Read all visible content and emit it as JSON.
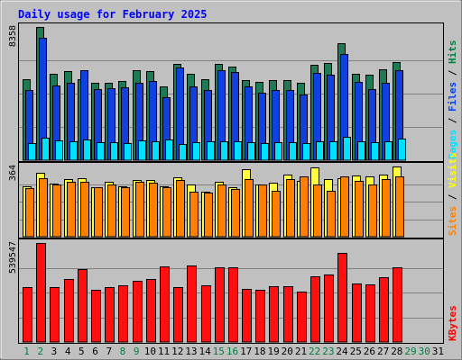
{
  "chart_data": {
    "type": "bar",
    "title": "Daily usage for February 2025",
    "categories": [
      "1",
      "2",
      "3",
      "4",
      "5",
      "6",
      "7",
      "8",
      "9",
      "10",
      "11",
      "12",
      "13",
      "14",
      "15",
      "16",
      "17",
      "18",
      "19",
      "20",
      "21",
      "22",
      "23",
      "24",
      "25",
      "26",
      "27",
      "28",
      "29",
      "30",
      "31"
    ],
    "weekend_days": [
      "1",
      "2",
      "8",
      "9",
      "15",
      "16",
      "22",
      "23",
      "29",
      "30"
    ],
    "panels": [
      {
        "name": "hits-files-pages",
        "ymax_label": "8358",
        "ylim": [
          0,
          8358
        ],
        "legend": [
          {
            "text": "Pages",
            "color": "#00e0ff"
          },
          {
            "text": " / ",
            "color": "#000000"
          },
          {
            "text": "Files",
            "color": "#0040ff"
          },
          {
            "text": " / ",
            "color": "#000000"
          },
          {
            "text": "Hits",
            "color": "#008040"
          }
        ],
        "series": [
          {
            "name": "Hits",
            "color": "#1e7a55",
            "values": [
              5060,
              8360,
              5440,
              5610,
              5100,
              4840,
              4870,
              4980,
              5650,
              5600,
              4630,
              6070,
              5420,
              5090,
              6060,
              5860,
              5040,
              4930,
              5040,
              5030,
              4870,
              6000,
              6100,
              7340,
              5420,
              5360,
              5680,
              6150,
              0,
              0,
              0
            ]
          },
          {
            "name": "Files",
            "color": "#1040e0",
            "values": [
              4380,
              7700,
              4660,
              4830,
              5660,
              4450,
              4540,
              4550,
              4830,
              4950,
              3960,
              5830,
              4610,
              4380,
              5640,
              5520,
              4640,
              4220,
              4390,
              4380,
              4120,
              5490,
              5380,
              6690,
              4940,
              4460,
              4860,
              5640,
              0,
              0,
              0
            ]
          },
          {
            "name": "Pages",
            "color": "#00e0ff",
            "values": [
              1100,
              1400,
              1250,
              1210,
              1290,
              1140,
              1110,
              1090,
              1230,
              1210,
              1310,
              995,
              1120,
              1180,
              1210,
              1200,
              1140,
              1050,
              1130,
              1120,
              1100,
              1210,
              1210,
              1450,
              1180,
              1140,
              1200,
              1350,
              0,
              0,
              0
            ]
          }
        ]
      },
      {
        "name": "visits-sites",
        "ymax_label": "364",
        "ylim": [
          0,
          364
        ],
        "legend": [
          {
            "text": "Sites",
            "color": "#ff8000"
          },
          {
            "text": " / ",
            "color": "#000000"
          },
          {
            "text": "Visits",
            "color": "#ffff00"
          }
        ],
        "series": [
          {
            "name": "Visits",
            "color": "#ffff40",
            "values": [
              260,
              330,
              277,
              300,
              303,
              258,
              287,
              263,
              293,
              292,
              263,
              310,
              269,
              235,
              285,
              255,
              350,
              270,
              280,
              320,
              290,
              361,
              300,
              303,
              317,
              314,
              322,
              362,
              0,
              0,
              0
            ]
          },
          {
            "name": "Sites",
            "color": "#ff8000",
            "values": [
              250,
              305,
              270,
              283,
              285,
              255,
              270,
              255,
              283,
              280,
              255,
              296,
              233,
              228,
              270,
              248,
              300,
              270,
              236,
              297,
              314,
              270,
              238,
              314,
              290,
              270,
              300,
              314,
              0,
              0,
              0
            ]
          }
        ]
      },
      {
        "name": "kbytes",
        "ymax_label": "539547",
        "ylim": [
          0,
          539547
        ],
        "legend": [
          {
            "text": "KBytes",
            "color": "#ff0000"
          }
        ],
        "series": [
          {
            "name": "KBytes",
            "color": "#ff1010",
            "values": [
              300000,
              540000,
              300000,
              343000,
              395000,
              283000,
              298000,
              311000,
              335000,
              343000,
              411000,
              299000,
              417000,
              307000,
              406000,
              406000,
              288000,
              283000,
              304000,
              305000,
              275000,
              357000,
              366000,
              487000,
              318000,
              315000,
              354000,
              406000,
              0,
              0,
              0
            ]
          }
        ]
      }
    ]
  }
}
